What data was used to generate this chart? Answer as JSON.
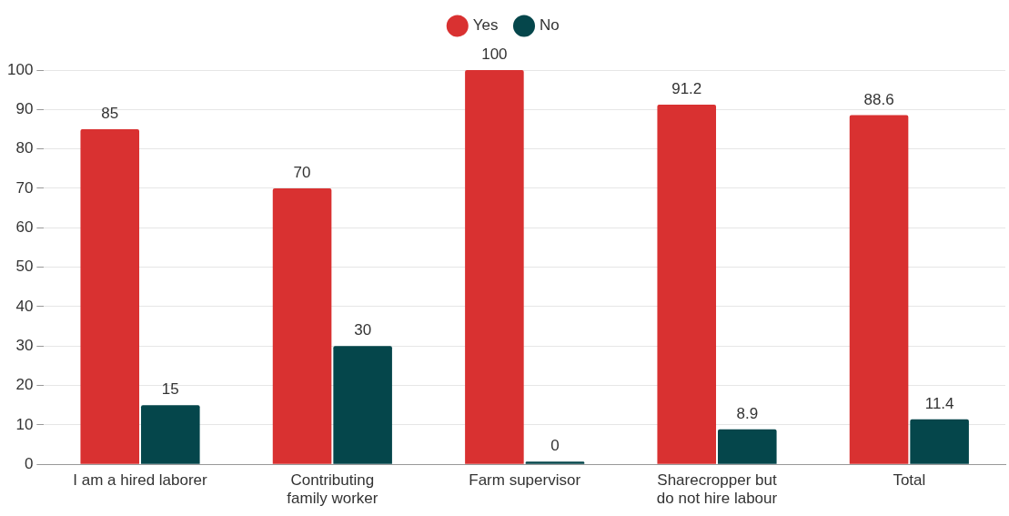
{
  "chart_data": {
    "type": "bar",
    "categories": [
      "I am a hired laborer",
      "Contributing family worker",
      "Farm supervisor",
      "Sharecropper but do not hire labour",
      "Total"
    ],
    "series": [
      {
        "name": "Yes",
        "color": "#d93131",
        "values": [
          85,
          70,
          100,
          91.2,
          88.6
        ]
      },
      {
        "name": "No",
        "color": "#05464b",
        "values": [
          15,
          30,
          0,
          8.9,
          11.4
        ]
      }
    ],
    "ylim": [
      0,
      100
    ],
    "yticks": [
      0,
      10,
      20,
      30,
      40,
      50,
      60,
      70,
      80,
      90,
      100
    ],
    "grid": "y",
    "legend": "top",
    "data_labels": true
  }
}
